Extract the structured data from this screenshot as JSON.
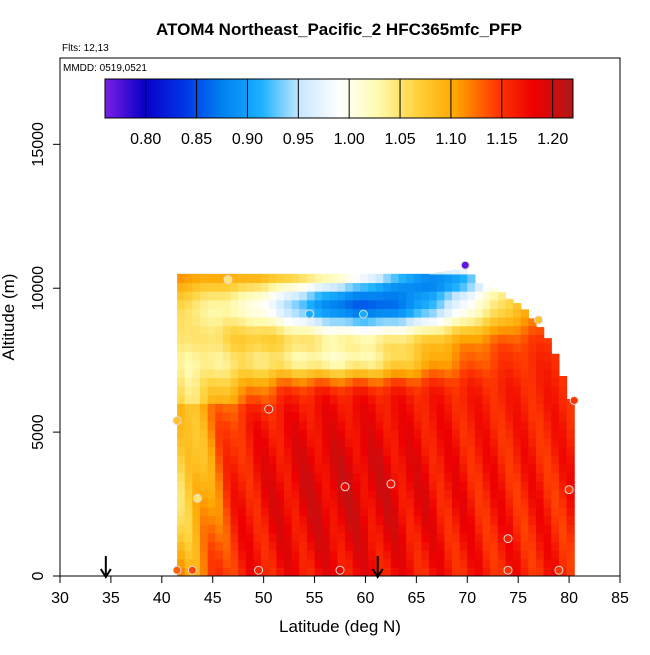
{
  "chart_data": {
    "type": "heatmap",
    "title": "ATOM4 Northeast_Pacific_2 HFC365mfc_PFP",
    "flights_label": "Flts: 12,13",
    "dates_label": "MMDD: 0519,0521",
    "xlabel": "Latitude (deg N)",
    "ylabel": "Altitude (m)",
    "xlim": [
      30,
      85
    ],
    "ylim": [
      0,
      18000
    ],
    "x_ticks": [
      30,
      35,
      40,
      45,
      50,
      55,
      60,
      65,
      70,
      75,
      80,
      85
    ],
    "y_ticks": [
      0,
      5000,
      10000,
      15000
    ],
    "colorbar": {
      "min": 0.76,
      "max": 1.22,
      "tick_values": [
        0.8,
        0.85,
        0.9,
        0.95,
        1.0,
        1.05,
        1.1,
        1.15,
        1.2
      ],
      "tick_labels": [
        "0.80",
        "0.85",
        "0.90",
        "0.95",
        "1.00",
        "1.05",
        "1.10",
        "1.15",
        "1.20"
      ],
      "colors": [
        "#7b1fe6",
        "#0a00c8",
        "#0033e6",
        "#0080f0",
        "#1ab0ff",
        "#c8e8ff",
        "#ffffff",
        "#fffbb0",
        "#ffd23c",
        "#ffa500",
        "#ff3c00",
        "#ee0000",
        "#b01818"
      ]
    },
    "domain": {
      "lat_start": 41.5,
      "lat_end": 80.5,
      "lat_step": 0.75,
      "alt_step": 300
    },
    "top_edge": [
      [
        41.5,
        10500
      ],
      [
        46.0,
        10500
      ],
      [
        66.0,
        10500
      ],
      [
        70.0,
        10700
      ],
      [
        71.5,
        10000
      ],
      [
        73.0,
        10000
      ],
      [
        73.8,
        9700
      ],
      [
        75.3,
        9400
      ],
      [
        76.5,
        8900
      ],
      [
        77.5,
        8500
      ],
      [
        78.3,
        8000
      ],
      [
        79.0,
        7400
      ],
      [
        80.0,
        6200
      ],
      [
        80.5,
        6000
      ],
      [
        80.5,
        2500
      ],
      [
        80.0,
        2500
      ],
      [
        79.5,
        1800
      ],
      [
        79.5,
        0
      ]
    ],
    "observations": [
      {
        "lat": 41.5,
        "alt": 200,
        "value": 1.13
      },
      {
        "lat": 43.0,
        "alt": 200,
        "value": 1.14
      },
      {
        "lat": 49.5,
        "alt": 200,
        "value": 1.16
      },
      {
        "lat": 57.5,
        "alt": 200,
        "value": 1.18
      },
      {
        "lat": 74.0,
        "alt": 200,
        "value": 1.15
      },
      {
        "lat": 79.0,
        "alt": 200,
        "value": 1.15
      },
      {
        "lat": 74.0,
        "alt": 1300,
        "value": 1.16
      },
      {
        "lat": 43.5,
        "alt": 2700,
        "value": 1.05
      },
      {
        "lat": 58.0,
        "alt": 3100,
        "value": 1.18
      },
      {
        "lat": 62.5,
        "alt": 3200,
        "value": 1.17
      },
      {
        "lat": 80.0,
        "alt": 3000,
        "value": 1.15
      },
      {
        "lat": 41.5,
        "alt": 5400,
        "value": 1.08
      },
      {
        "lat": 50.5,
        "alt": 5800,
        "value": 1.16
      },
      {
        "lat": 80.5,
        "alt": 6100,
        "value": 1.15
      },
      {
        "lat": 54.5,
        "alt": 9100,
        "value": 0.91
      },
      {
        "lat": 59.8,
        "alt": 9100,
        "value": 0.91
      },
      {
        "lat": 77.0,
        "alt": 8900,
        "value": 1.08
      },
      {
        "lat": 46.5,
        "alt": 10300,
        "value": 1.05
      },
      {
        "lat": 69.8,
        "alt": 10800,
        "value": 0.77
      }
    ],
    "flight_markers": [
      {
        "lat": 34.5,
        "label": ""
      },
      {
        "lat": 61.2,
        "label": ""
      }
    ]
  }
}
